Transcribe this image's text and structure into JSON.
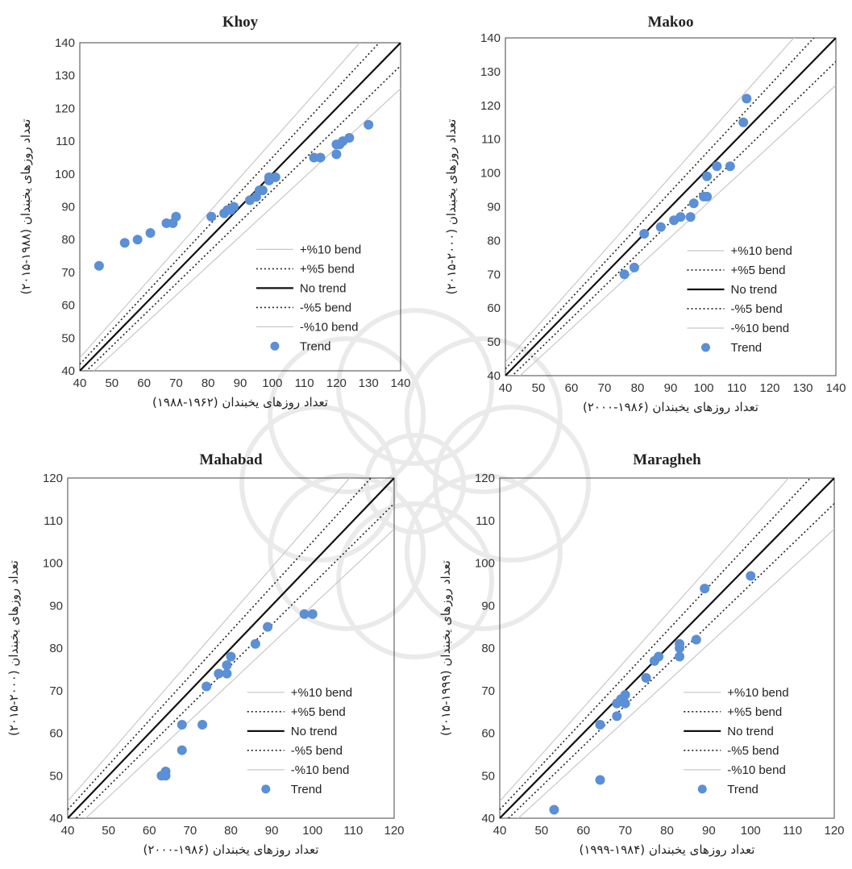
{
  "chart_data": [
    {
      "type": "scatter",
      "title": "Khoy",
      "xlabel": "تعداد روزهای یخبندان (۱۹۶۲-۱۹۸۸)",
      "ylabel": "تعداد روزهای یخبندان (۱۹۸۸-۲۰۱۵)",
      "xlim": [
        40,
        140
      ],
      "ylim": [
        40,
        140
      ],
      "xticks": [
        "40",
        "50",
        "60",
        "70",
        "80",
        "90",
        "100",
        "110",
        "120",
        "130",
        "140"
      ],
      "yticks": [
        "40",
        "50",
        "60",
        "70",
        "80",
        "90",
        "100",
        "110",
        "120",
        "130",
        "140"
      ],
      "legend": [
        "+%10 bend",
        "+%5 bend",
        "No trend",
        "-%5 bend",
        "-%10 bend",
        "Trend"
      ],
      "legend_position": "bottom-right",
      "series": [
        {
          "name": "Trend",
          "color": "#5b8fd6",
          "points": [
            [
              46,
              72
            ],
            [
              54,
              79
            ],
            [
              58,
              80
            ],
            [
              62,
              82
            ],
            [
              67,
              85
            ],
            [
              69,
              85
            ],
            [
              70,
              87
            ],
            [
              81,
              87
            ],
            [
              85,
              88
            ],
            [
              86,
              89
            ],
            [
              87,
              89
            ],
            [
              88,
              90
            ],
            [
              93,
              92
            ],
            [
              95,
              93
            ],
            [
              96,
              95
            ],
            [
              97,
              95
            ],
            [
              99,
              98
            ],
            [
              99,
              99
            ],
            [
              101,
              99
            ],
            [
              113,
              105
            ],
            [
              115,
              105
            ],
            [
              120,
              106
            ],
            [
              120,
              109
            ],
            [
              121,
              109
            ],
            [
              122,
              110
            ],
            [
              124,
              111
            ],
            [
              130,
              115
            ]
          ]
        }
      ]
    },
    {
      "type": "scatter",
      "title": "Makoo",
      "xlabel": "تعداد روزهای یخبندان (۱۹۸۶-۲۰۰۰)",
      "ylabel": "تعداد روزهای یخبندان (۲۰۰۰-۲۰۱۵)",
      "xlim": [
        40,
        140
      ],
      "ylim": [
        40,
        140
      ],
      "xticks": [
        "40",
        "50",
        "60",
        "70",
        "80",
        "90",
        "100",
        "110",
        "120",
        "130",
        "140"
      ],
      "yticks": [
        "40",
        "50",
        "60",
        "70",
        "80",
        "90",
        "100",
        "110",
        "120",
        "130",
        "140"
      ],
      "legend": [
        "+%10 bend",
        "+%5 bend",
        "No trend",
        "-%5 bend",
        "-%10 bend",
        "Trend"
      ],
      "legend_position": "bottom-right",
      "series": [
        {
          "name": "Trend",
          "color": "#5b8fd6",
          "points": [
            [
              76,
              70
            ],
            [
              79,
              72
            ],
            [
              82,
              82
            ],
            [
              87,
              84
            ],
            [
              91,
              86
            ],
            [
              93,
              87
            ],
            [
              96,
              87
            ],
            [
              97,
              91
            ],
            [
              100,
              93
            ],
            [
              101,
              93
            ],
            [
              101,
              99
            ],
            [
              104,
              102
            ],
            [
              108,
              102
            ],
            [
              112,
              115
            ],
            [
              113,
              122
            ]
          ]
        }
      ]
    },
    {
      "type": "scatter",
      "title": "Mahabad",
      "xlabel": "تعداد روزهای یخبندان (۱۹۸۶-۲۰۰۰)",
      "ylabel": "تعداد روزهای یخبندان (۲۰۰۰-۲۰۱۵)",
      "xlim": [
        40,
        120
      ],
      "ylim": [
        40,
        120
      ],
      "xticks": [
        "40",
        "50",
        "60",
        "70",
        "80",
        "90",
        "100",
        "110",
        "120"
      ],
      "yticks": [
        "40",
        "50",
        "60",
        "70",
        "80",
        "90",
        "100",
        "110",
        "120"
      ],
      "legend": [
        "+%10 bend",
        "+%5 bend",
        "No trend",
        "-%5 bend",
        "-%10 bend",
        "Trend"
      ],
      "legend_position": "bottom-right",
      "series": [
        {
          "name": "Trend",
          "color": "#5b8fd6",
          "points": [
            [
              63,
              50
            ],
            [
              64,
              51
            ],
            [
              64,
              50
            ],
            [
              68,
              56
            ],
            [
              68,
              62
            ],
            [
              73,
              62
            ],
            [
              74,
              71
            ],
            [
              77,
              74
            ],
            [
              79,
              74
            ],
            [
              79,
              76
            ],
            [
              80,
              78
            ],
            [
              86,
              81
            ],
            [
              89,
              85
            ],
            [
              98,
              88
            ],
            [
              100,
              88
            ]
          ]
        }
      ]
    },
    {
      "type": "scatter",
      "title": "Maragheh",
      "xlabel": "تعداد روزهای یخبندان (۱۹۸۴-۱۹۹۹)",
      "ylabel": "تعداد روزهای یخبندان (۱۹۹۹-۲۰۱۵)",
      "xlim": [
        40,
        120
      ],
      "ylim": [
        40,
        120
      ],
      "xticks": [
        "40",
        "50",
        "60",
        "70",
        "80",
        "90",
        "100",
        "110",
        "120"
      ],
      "yticks": [
        "40",
        "50",
        "60",
        "70",
        "80",
        "90",
        "100",
        "110",
        "120"
      ],
      "legend": [
        "+%10 bend",
        "+%5 bend",
        "No trend",
        "-%5 bend",
        "-%10 bend",
        "Trend"
      ],
      "legend_position": "bottom-right",
      "series": [
        {
          "name": "Trend",
          "color": "#5b8fd6",
          "points": [
            [
              53,
              42
            ],
            [
              64,
              49
            ],
            [
              64,
              62
            ],
            [
              68,
              64
            ],
            [
              68,
              67
            ],
            [
              69,
              68
            ],
            [
              70,
              67
            ],
            [
              70,
              69
            ],
            [
              75,
              73
            ],
            [
              77,
              77
            ],
            [
              78,
              78
            ],
            [
              83,
              78
            ],
            [
              83,
              80
            ],
            [
              83,
              81
            ],
            [
              87,
              82
            ],
            [
              89,
              94
            ],
            [
              100,
              97
            ]
          ]
        }
      ]
    }
  ]
}
